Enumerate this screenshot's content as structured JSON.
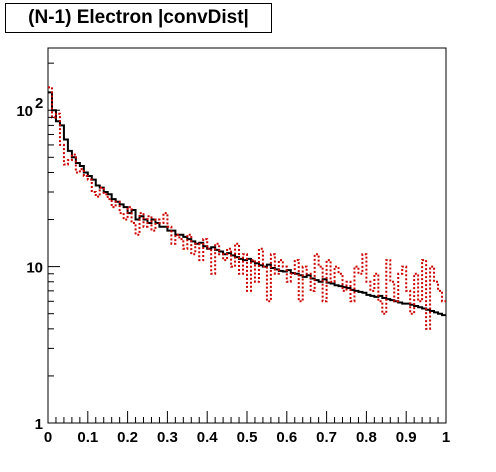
{
  "chart_data": {
    "type": "line",
    "title": "(N-1) Electron |convDist|",
    "xlabel": "",
    "ylabel": "",
    "xlim": [
      0,
      1
    ],
    "ylim": [
      1,
      250
    ],
    "yscale": "log",
    "grid": false,
    "legend": "none",
    "x_tick_labels": [
      "0",
      "0.1",
      "0.2",
      "0.3",
      "0.4",
      "0.5",
      "0.6",
      "0.7",
      "0.8",
      "0.9",
      "1"
    ],
    "y_tick_labels": [
      {
        "value": 1,
        "base": "1",
        "exp": ""
      },
      {
        "value": 10,
        "base": "10",
        "exp": ""
      },
      {
        "value": 100,
        "base": "10",
        "exp": "2"
      }
    ],
    "bin_edges_start": 0,
    "bin_width": 0.01,
    "series": [
      {
        "color": "#000000",
        "style": "solid",
        "values": [
          130,
          100,
          85,
          80,
          65,
          55,
          50,
          46,
          44,
          40,
          38,
          36,
          33,
          32,
          30,
          29,
          27,
          26,
          25,
          24,
          22,
          23,
          20,
          21,
          20,
          19,
          20,
          19,
          18,
          18,
          17,
          17,
          16,
          16,
          15.5,
          15,
          14.5,
          14,
          14.2,
          13.5,
          13,
          13.3,
          12.8,
          12.5,
          12,
          12.2,
          11.8,
          11.5,
          11.2,
          11,
          11.2,
          10.8,
          10.5,
          10.2,
          10,
          10.3,
          9.8,
          9.6,
          9.4,
          9.3,
          9.5,
          9.1,
          9,
          8.8,
          8.6,
          8.8,
          8.4,
          8.2,
          8,
          8.3,
          7.9,
          7.8,
          7.6,
          7.5,
          7.4,
          7.3,
          7.1,
          7,
          6.9,
          6.8,
          6.6,
          6.5,
          6.4,
          6.5,
          6.3,
          6.2,
          6.1,
          6,
          5.9,
          5.8,
          5.8,
          5.7,
          5.6,
          5.5,
          5.4,
          5.3,
          5.2,
          5.1,
          5,
          4.9
        ]
      },
      {
        "color": "#cc0000",
        "style": "dotted",
        "values": [
          140,
          90,
          95,
          60,
          45,
          48,
          52,
          40,
          42,
          38,
          36,
          30,
          28,
          32,
          29,
          27,
          24,
          26,
          22,
          20,
          24,
          19,
          16,
          22,
          18,
          21,
          17,
          20,
          19,
          22,
          18,
          14,
          16,
          15,
          13,
          16,
          12,
          14,
          11,
          15,
          13,
          9,
          14,
          12,
          11,
          13,
          10,
          14,
          9,
          12,
          7,
          11,
          8,
          13,
          10,
          6,
          12,
          9,
          11,
          10,
          8,
          9,
          11,
          6,
          10,
          9,
          7,
          12,
          10,
          6,
          11,
          8,
          10,
          9,
          7,
          8,
          6,
          10,
          9,
          12,
          8,
          7,
          9,
          6,
          5,
          11,
          8,
          6,
          9,
          10,
          7,
          5,
          9,
          6,
          11,
          4,
          10,
          8,
          7,
          6
        ]
      }
    ]
  }
}
